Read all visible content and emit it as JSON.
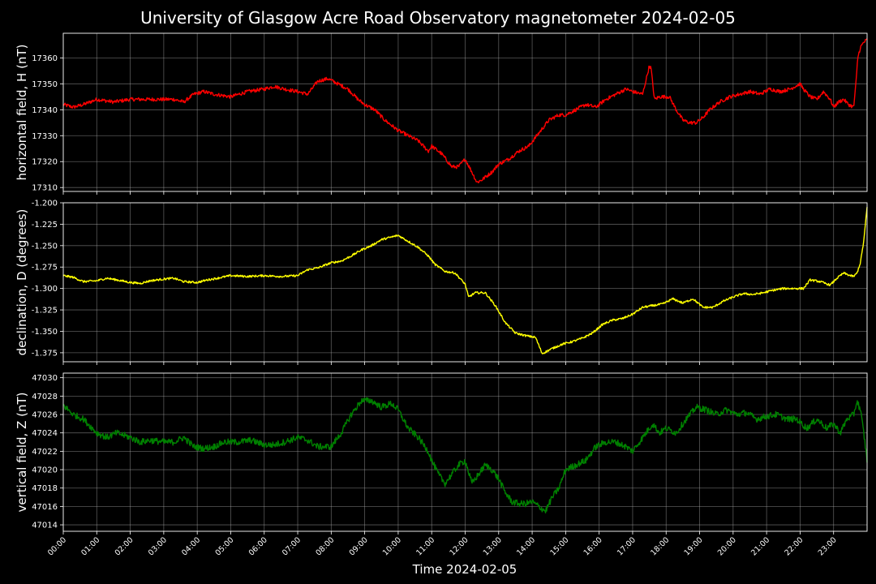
{
  "chart_data": {
    "type": "line",
    "title": "University of Glasgow Acre Road Observatory magnetometer 2024-02-05",
    "xlabel": "Time 2024-02-05",
    "x_unit": "hours since 00:00",
    "xlim": [
      0,
      24
    ],
    "x_ticks": [
      "00:00",
      "01:00",
      "02:00",
      "03:00",
      "04:00",
      "05:00",
      "06:00",
      "07:00",
      "08:00",
      "09:00",
      "10:00",
      "11:00",
      "12:00",
      "13:00",
      "14:00",
      "15:00",
      "16:00",
      "17:00",
      "18:00",
      "19:00",
      "20:00",
      "21:00",
      "22:00",
      "23:00"
    ],
    "grid": true,
    "panels": [
      {
        "ylabel": "horizontal field, H (nT)",
        "color": "#ff0000",
        "ylim": [
          17308.5,
          17369.5
        ],
        "y_ticks": [
          "17310",
          "17320",
          "17330",
          "17340",
          "17350",
          "17360"
        ],
        "y_tick_values": [
          17310,
          17320,
          17330,
          17340,
          17350,
          17360
        ],
        "noise": 0.7,
        "series": [
          {
            "name": "H",
            "x": [
              0,
              0.3,
              0.6,
              1.0,
              1.5,
              2.0,
              2.5,
              3.0,
              3.3,
              3.6,
              3.9,
              4.2,
              4.5,
              5.0,
              5.5,
              6.0,
              6.3,
              6.6,
              7.0,
              7.3,
              7.6,
              7.9,
              8.2,
              8.5,
              8.8,
              9.0,
              9.3,
              9.6,
              10.0,
              10.3,
              10.6,
              10.9,
              11.0,
              11.3,
              11.6,
              11.8,
              12.0,
              12.2,
              12.35,
              12.5,
              12.8,
              13.0,
              13.3,
              13.6,
              13.9,
              14.2,
              14.5,
              14.8,
              15.0,
              15.3,
              15.6,
              15.9,
              16.2,
              16.5,
              16.8,
              17.0,
              17.3,
              17.5,
              17.55,
              17.65,
              17.8,
              18.1,
              18.3,
              18.5,
              18.7,
              18.9,
              19.1,
              19.3,
              19.6,
              19.9,
              20.2,
              20.5,
              20.8,
              21.1,
              21.4,
              21.7,
              22.0,
              22.1,
              22.3,
              22.5,
              22.7,
              22.9,
              23.0,
              23.15,
              23.3,
              23.45,
              23.6,
              23.68,
              23.72,
              23.8,
              23.9,
              24.0
            ],
            "y": [
              17342,
              17341,
              17342,
              17344,
              17343,
              17344,
              17344,
              17344,
              17344,
              17343,
              17346,
              17347,
              17346,
              17345,
              17347,
              17348,
              17349,
              17348,
              17347,
              17346,
              17351,
              17352,
              17350,
              17348,
              17344,
              17342,
              17340,
              17336,
              17332,
              17330,
              17328,
              17324,
              17326,
              17323,
              17318,
              17318,
              17321,
              17316,
              17312,
              17313,
              17316,
              17319,
              17321,
              17324,
              17326,
              17331,
              17336,
              17338,
              17338,
              17340,
              17342,
              17341,
              17344,
              17346,
              17348,
              17347,
              17346,
              17357,
              17356,
              17344,
              17345,
              17345,
              17340,
              17336,
              17335,
              17335,
              17337,
              17340,
              17343,
              17345,
              17346,
              17347,
              17346,
              17348,
              17347,
              17348,
              17350,
              17348,
              17345,
              17344,
              17347,
              17344,
              17341,
              17343,
              17344,
              17342,
              17341,
              17352,
              17360,
              17364,
              17366,
              17367
            ]
          }
        ]
      },
      {
        "ylabel": "declination, D (degrees)",
        "color": "#ffff00",
        "ylim": [
          -1.3855,
          -1.2
        ],
        "y_ticks": [
          "-1.200",
          "-1.225",
          "-1.250",
          "-1.275",
          "-1.300",
          "-1.325",
          "-1.350",
          "-1.375"
        ],
        "y_tick_values": [
          -1.2,
          -1.225,
          -1.25,
          -1.275,
          -1.3,
          -1.325,
          -1.35,
          -1.375
        ],
        "noise": 0.0012,
        "series": [
          {
            "name": "D",
            "x": [
              0,
              0.3,
              0.6,
              1.0,
              1.3,
              1.6,
              2.0,
              2.3,
              2.6,
              3.0,
              3.3,
              3.6,
              4.0,
              4.3,
              4.6,
              5.0,
              5.5,
              6.0,
              6.5,
              7.0,
              7.3,
              7.6,
              8.0,
              8.3,
              8.6,
              8.9,
              9.2,
              9.5,
              9.8,
              10.0,
              10.3,
              10.6,
              10.9,
              11.1,
              11.4,
              11.7,
              12.0,
              12.1,
              12.3,
              12.6,
              12.9,
              13.2,
              13.5,
              13.8,
              14.1,
              14.3,
              14.6,
              14.9,
              15.2,
              15.5,
              15.8,
              16.1,
              16.4,
              16.7,
              17.0,
              17.3,
              17.6,
              17.9,
              18.2,
              18.5,
              18.8,
              19.1,
              19.4,
              19.7,
              20.0,
              20.3,
              20.6,
              20.9,
              21.2,
              21.5,
              21.8,
              22.1,
              22.3,
              22.6,
              22.9,
              23.1,
              23.3,
              23.5,
              23.6,
              23.7,
              23.8,
              23.9,
              24.0
            ],
            "y": [
              -1.285,
              -1.287,
              -1.292,
              -1.291,
              -1.288,
              -1.29,
              -1.293,
              -1.294,
              -1.291,
              -1.289,
              -1.288,
              -1.292,
              -1.293,
              -1.29,
              -1.288,
              -1.285,
              -1.286,
              -1.285,
              -1.286,
              -1.285,
              -1.278,
              -1.276,
              -1.27,
              -1.268,
              -1.262,
              -1.255,
              -1.25,
              -1.243,
              -1.24,
              -1.238,
              -1.245,
              -1.252,
              -1.262,
              -1.272,
              -1.28,
              -1.282,
              -1.295,
              -1.31,
              -1.305,
              -1.305,
              -1.32,
              -1.34,
              -1.352,
              -1.355,
              -1.357,
              -1.376,
              -1.37,
              -1.365,
              -1.362,
              -1.358,
              -1.352,
              -1.342,
              -1.337,
              -1.335,
              -1.33,
              -1.322,
              -1.32,
              -1.318,
              -1.312,
              -1.317,
              -1.312,
              -1.322,
              -1.322,
              -1.315,
              -1.31,
              -1.306,
              -1.307,
              -1.305,
              -1.302,
              -1.3,
              -1.3,
              -1.3,
              -1.29,
              -1.292,
              -1.296,
              -1.288,
              -1.282,
              -1.285,
              -1.286,
              -1.282,
              -1.27,
              -1.245,
              -1.205
            ]
          }
        ]
      },
      {
        "ylabel": "vertical field, Z (nT)",
        "color": "#008000",
        "ylim": [
          47013.3,
          47030.5
        ],
        "y_ticks": [
          "47014",
          "47016",
          "47018",
          "47020",
          "47022",
          "47024",
          "47026",
          "47028",
          "47030"
        ],
        "y_tick_values": [
          47014,
          47016,
          47018,
          47020,
          47022,
          47024,
          47026,
          47028,
          47030
        ],
        "noise": 0.35,
        "series": [
          {
            "name": "Z",
            "x": [
              0,
              0.3,
              0.6,
              1.0,
              1.3,
              1.6,
              2.0,
              2.3,
              2.6,
              3.0,
              3.3,
              3.6,
              3.9,
              4.2,
              4.5,
              4.8,
              5.2,
              5.6,
              6.0,
              6.3,
              6.6,
              7.0,
              7.3,
              7.6,
              8.0,
              8.3,
              8.6,
              8.9,
              9.2,
              9.5,
              9.8,
              10.0,
              10.3,
              10.6,
              10.9,
              11.0,
              11.2,
              11.4,
              11.6,
              11.8,
              12.0,
              12.2,
              12.4,
              12.6,
              12.8,
              13.0,
              13.2,
              13.4,
              13.6,
              13.8,
              14.0,
              14.2,
              14.4,
              14.6,
              14.8,
              15.0,
              15.3,
              15.6,
              15.9,
              16.2,
              16.5,
              16.8,
              17.0,
              17.2,
              17.4,
              17.6,
              17.8,
              18.0,
              18.3,
              18.6,
              18.9,
              19.2,
              19.5,
              19.8,
              20.1,
              20.4,
              20.7,
              21.0,
              21.3,
              21.6,
              21.9,
              22.2,
              22.5,
              22.8,
              23.0,
              23.2,
              23.4,
              23.6,
              23.7,
              23.8,
              23.9,
              24.0
            ],
            "y": [
              47027,
              47026,
              47025.5,
              47024,
              47023.5,
              47024,
              47023.5,
              47023,
              47023.2,
              47023,
              47023,
              47023.5,
              47022.5,
              47022.3,
              47022.5,
              47023,
              47023,
              47023.2,
              47022.7,
              47022.7,
              47023,
              47023.5,
              47023.2,
              47022.5,
              47022.5,
              47024,
              47026,
              47027.5,
              47027.5,
              47026.8,
              47027.2,
              47026.5,
              47024.5,
              47023.5,
              47022,
              47021,
              47019.5,
              47018.5,
              47019.5,
              47020.5,
              47021,
              47018.5,
              47019.5,
              47020.5,
              47020,
              47019,
              47017.5,
              47016.5,
              47016.3,
              47016.3,
              47016.5,
              47016,
              47015.5,
              47017,
              47018,
              47020,
              47020.5,
              47021,
              47022.5,
              47023,
              47023,
              47022.5,
              47022,
              47023,
              47024,
              47025,
              47024,
              47024.5,
              47024,
              47025.5,
              47026.8,
              47026.5,
              47026,
              47026.5,
              47026,
              47026.2,
              47025.5,
              47025.8,
              47026,
              47025.5,
              47025.5,
              47024.5,
              47025.5,
              47024.5,
              47025,
              47024,
              47025.5,
              47026,
              47027.5,
              47026.5,
              47024,
              47021
            ]
          }
        ]
      }
    ]
  }
}
